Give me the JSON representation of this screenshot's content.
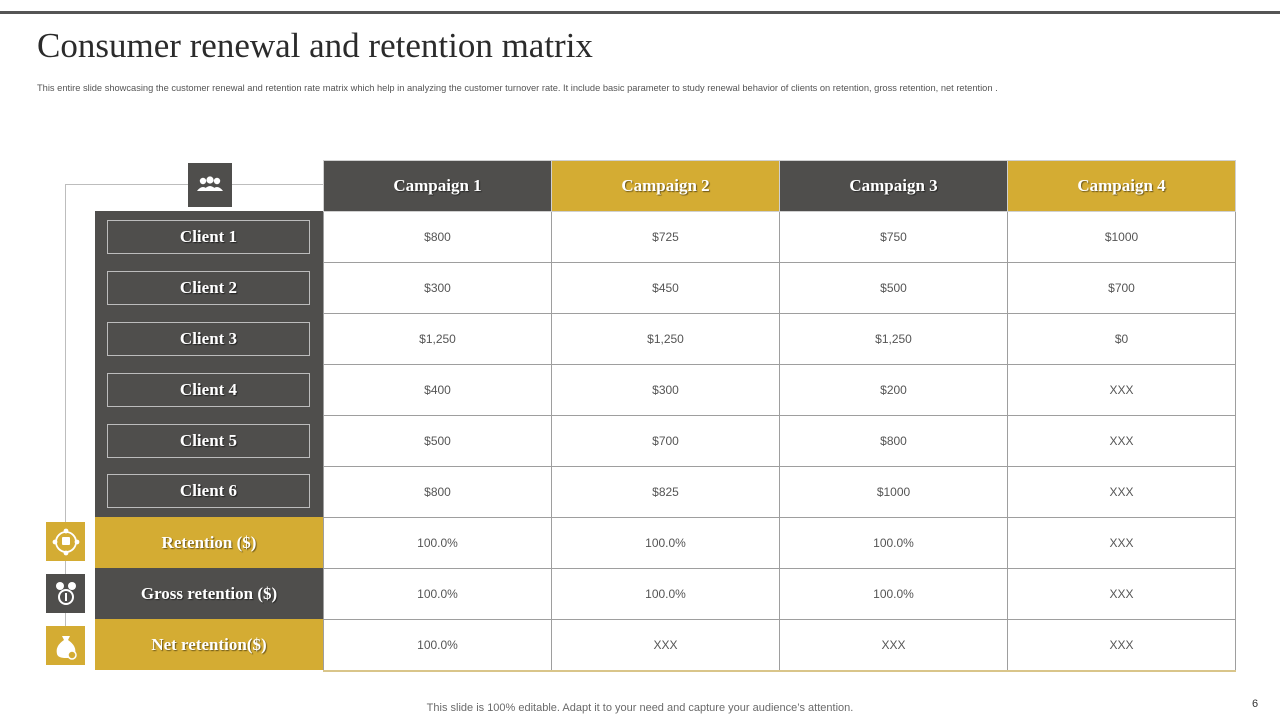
{
  "slide": {
    "title": "Consumer renewal and retention matrix",
    "subtitle": "This entire slide showcasing the customer renewal and retention rate matrix which help in analyzing the customer turnover rate. It include basic parameter to study renewal behavior of clients on retention, gross retention, net retention .",
    "footer": "This slide is 100% editable. Adapt it to your need and capture your audience’s attention.",
    "page_number": "6"
  },
  "colors": {
    "dark": "#4f4e4c",
    "gold": "#d4ac33",
    "border": "#9e9e9e"
  },
  "icons": {
    "header": "people-group-icon",
    "retention": "cycle-person-icon",
    "gross": "money-percent-icon",
    "net": "money-bag-icon"
  },
  "table": {
    "columns": [
      "Campaign 1",
      "Campaign 2",
      "Campaign 3",
      "Campaign 4"
    ],
    "rows": [
      {
        "label": "Client 1",
        "values": [
          "$800",
          "$725",
          "$750",
          "$1000"
        ]
      },
      {
        "label": "Client 2",
        "values": [
          "$300",
          "$450",
          "$500",
          "$700"
        ]
      },
      {
        "label": "Client 3",
        "values": [
          "$1,250",
          "$1,250",
          "$1,250",
          "$0"
        ]
      },
      {
        "label": "Client 4",
        "values": [
          "$400",
          "$300",
          "$200",
          "XXX"
        ]
      },
      {
        "label": "Client 5",
        "values": [
          "$500",
          "$700",
          "$800",
          "XXX"
        ]
      },
      {
        "label": "Client 6",
        "values": [
          "$800",
          "$825",
          "$1000",
          "XXX"
        ]
      },
      {
        "label": "Retention ($)",
        "values": [
          "100.0%",
          "100.0%",
          "100.0%",
          "XXX"
        ]
      },
      {
        "label": "Gross retention ($)",
        "values": [
          "100.0%",
          "100.0%",
          "100.0%",
          "XXX"
        ]
      },
      {
        "label": "Net retention($)",
        "values": [
          "100.0%",
          "XXX",
          "XXX",
          "XXX"
        ]
      }
    ]
  }
}
